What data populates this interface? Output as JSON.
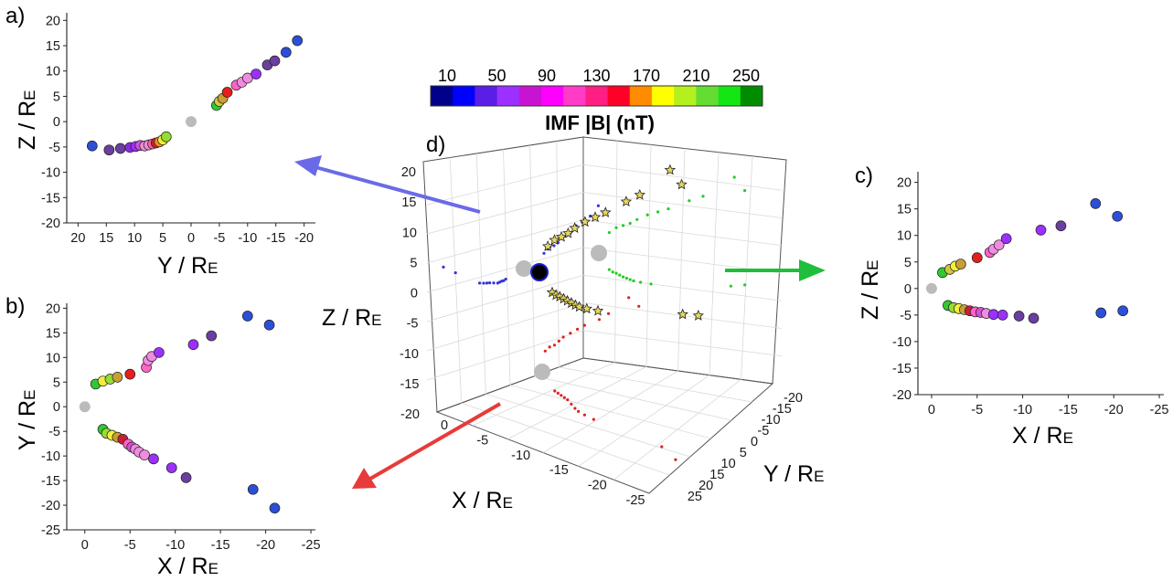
{
  "figure": {
    "title": ""
  },
  "colorbar": {
    "title": "IMF |B| (nT)",
    "tick_labels": [
      "10",
      "50",
      "90",
      "130",
      "170",
      "210",
      "250"
    ],
    "colors": [
      "#00008b",
      "#0000ff",
      "#5a1ee6",
      "#9b30ff",
      "#c814d2",
      "#ff00ff",
      "#ff3cc8",
      "#ff1e82",
      "#ff0028",
      "#ff8c00",
      "#ffff00",
      "#b4f01e",
      "#64dc32",
      "#14e614",
      "#008c00"
    ]
  },
  "marker_colors": {
    "earth": "#bbbbbb",
    "star_fill": "#e6d75a",
    "star_stroke": "#222222",
    "proj_zy": "#3232dc",
    "proj_zx": "#22cc22",
    "proj_yx": "#dd2222",
    "arrow_a": "#6a6ae8",
    "arrow_b": "#e83a3a",
    "arrow_c": "#1fbe3c"
  },
  "chart_data": [
    {
      "panel_label": "a)",
      "type": "scatter",
      "xlabel_main": "Y / R",
      "xlabel_sub": "E",
      "ylabel_main": "Z / R",
      "ylabel_sub": "E",
      "xlim": [
        20,
        -20
      ],
      "ylim": [
        -20,
        20
      ],
      "xticks": [
        "20",
        "15",
        "10",
        "5",
        "0",
        "-5",
        "-10",
        "-15",
        "-20"
      ],
      "yticks": [
        "20",
        "15",
        "10",
        "5",
        "0",
        "-5",
        "-10",
        "-15",
        "-20"
      ],
      "earth": [
        0,
        0
      ],
      "points": [
        {
          "x": 17.5,
          "y": -4.8,
          "c": "#2c4fd8"
        },
        {
          "x": 14.5,
          "y": -5.6,
          "c": "#6a3fa0"
        },
        {
          "x": 12.5,
          "y": -5.3,
          "c": "#6a3fa0"
        },
        {
          "x": 10.8,
          "y": -5.1,
          "c": "#8a2be2"
        },
        {
          "x": 9.8,
          "y": -4.9,
          "c": "#9b30ff"
        },
        {
          "x": 9.0,
          "y": -4.7,
          "c": "#d44fd4"
        },
        {
          "x": 8.2,
          "y": -4.8,
          "c": "#f08ce0"
        },
        {
          "x": 7.5,
          "y": -4.6,
          "c": "#f08ce0"
        },
        {
          "x": 6.8,
          "y": -4.4,
          "c": "#ff6496"
        },
        {
          "x": 6.2,
          "y": -4.2,
          "c": "#c81e3c"
        },
        {
          "x": 5.6,
          "y": -4.0,
          "c": "#ff8c1e"
        },
        {
          "x": 5.0,
          "y": -3.6,
          "c": "#f0f03c"
        },
        {
          "x": 4.4,
          "y": -3.0,
          "c": "#96dc32"
        },
        {
          "x": -4.5,
          "y": 3.2,
          "c": "#32c832"
        },
        {
          "x": -5.0,
          "y": 4.0,
          "c": "#d2c83c"
        },
        {
          "x": -5.6,
          "y": 4.6,
          "c": "#c8a032"
        },
        {
          "x": -6.4,
          "y": 5.8,
          "c": "#e61e1e"
        },
        {
          "x": -8.0,
          "y": 7.2,
          "c": "#ff64c8"
        },
        {
          "x": -9.0,
          "y": 7.8,
          "c": "#f08ce0"
        },
        {
          "x": -10.0,
          "y": 8.6,
          "c": "#f08ce0"
        },
        {
          "x": -11.5,
          "y": 9.4,
          "c": "#9b30ff"
        },
        {
          "x": -13.5,
          "y": 11.2,
          "c": "#6a3fa0"
        },
        {
          "x": -14.8,
          "y": 12.0,
          "c": "#6a3fa0"
        },
        {
          "x": -16.8,
          "y": 13.7,
          "c": "#2c4fd8"
        },
        {
          "x": -18.8,
          "y": 16.0,
          "c": "#2c4fd8"
        }
      ]
    },
    {
      "panel_label": "b)",
      "type": "scatter",
      "xlabel_main": "X / R",
      "xlabel_sub": "E",
      "ylabel_main": "Y / R",
      "ylabel_sub": "E",
      "xlim": [
        5,
        -25
      ],
      "ylim": [
        -25,
        20
      ],
      "xticks": [
        "0",
        "-5",
        "-10",
        "-15",
        "-20",
        "-25"
      ],
      "yticks": [
        "20",
        "15",
        "10",
        "5",
        "0",
        "-5",
        "-10",
        "-15",
        "-20",
        "-25"
      ],
      "earth": [
        0,
        0
      ],
      "points": [
        {
          "x": -1.2,
          "y": 4.6,
          "c": "#32c832"
        },
        {
          "x": -2.0,
          "y": 5.2,
          "c": "#f0f03c"
        },
        {
          "x": -2.8,
          "y": 5.6,
          "c": "#96dc32"
        },
        {
          "x": -3.6,
          "y": 6.0,
          "c": "#c8a032"
        },
        {
          "x": -5.0,
          "y": 6.6,
          "c": "#e61e1e"
        },
        {
          "x": -6.8,
          "y": 8.0,
          "c": "#ff64c8"
        },
        {
          "x": -7.0,
          "y": 9.4,
          "c": "#f08ce0"
        },
        {
          "x": -7.4,
          "y": 10.2,
          "c": "#f08ce0"
        },
        {
          "x": -8.2,
          "y": 11.0,
          "c": "#9b30ff"
        },
        {
          "x": -12.0,
          "y": 12.6,
          "c": "#9b30ff"
        },
        {
          "x": -14.0,
          "y": 14.4,
          "c": "#6a3fa0"
        },
        {
          "x": -18.0,
          "y": 18.4,
          "c": "#2c4fd8"
        },
        {
          "x": -20.4,
          "y": 16.6,
          "c": "#2c4fd8"
        },
        {
          "x": -2.0,
          "y": -4.6,
          "c": "#32c832"
        },
        {
          "x": -2.4,
          "y": -5.4,
          "c": "#96dc32"
        },
        {
          "x": -3.0,
          "y": -5.8,
          "c": "#f0f03c"
        },
        {
          "x": -3.6,
          "y": -6.2,
          "c": "#c8a032"
        },
        {
          "x": -4.2,
          "y": -6.6,
          "c": "#c81e3c"
        },
        {
          "x": -4.8,
          "y": -7.6,
          "c": "#ff64c8"
        },
        {
          "x": -5.2,
          "y": -8.2,
          "c": "#d44fd4"
        },
        {
          "x": -5.6,
          "y": -8.6,
          "c": "#f08ce0"
        },
        {
          "x": -6.0,
          "y": -9.2,
          "c": "#f08ce0"
        },
        {
          "x": -6.6,
          "y": -9.8,
          "c": "#f08ce0"
        },
        {
          "x": -7.6,
          "y": -10.6,
          "c": "#9b30ff"
        },
        {
          "x": -9.6,
          "y": -12.4,
          "c": "#9b30ff"
        },
        {
          "x": -11.2,
          "y": -14.4,
          "c": "#6a3fa0"
        },
        {
          "x": -18.6,
          "y": -16.8,
          "c": "#2c4fd8"
        },
        {
          "x": -21.0,
          "y": -20.6,
          "c": "#2c4fd8"
        }
      ]
    },
    {
      "panel_label": "c)",
      "type": "scatter",
      "xlabel_main": "X / R",
      "xlabel_sub": "E",
      "ylabel_main": "Z / R",
      "ylabel_sub": "E",
      "xlim": [
        2,
        -25
      ],
      "ylim": [
        -20,
        20
      ],
      "xticks": [
        "0",
        "-5",
        "-10",
        "-15",
        "-20",
        "-25"
      ],
      "yticks": [
        "20",
        "15",
        "10",
        "5",
        "0",
        "-5",
        "-10",
        "-15",
        "-20"
      ],
      "earth": [
        0,
        0
      ],
      "points": [
        {
          "x": -1.2,
          "y": 3.0,
          "c": "#32c832"
        },
        {
          "x": -2.0,
          "y": 3.6,
          "c": "#d2c83c"
        },
        {
          "x": -2.6,
          "y": 4.2,
          "c": "#f0f03c"
        },
        {
          "x": -3.2,
          "y": 4.6,
          "c": "#c8a032"
        },
        {
          "x": -5.0,
          "y": 5.8,
          "c": "#e61e1e"
        },
        {
          "x": -6.4,
          "y": 6.8,
          "c": "#ff64c8"
        },
        {
          "x": -6.8,
          "y": 7.4,
          "c": "#f08ce0"
        },
        {
          "x": -7.4,
          "y": 8.2,
          "c": "#f08ce0"
        },
        {
          "x": -8.2,
          "y": 9.4,
          "c": "#9b30ff"
        },
        {
          "x": -12.0,
          "y": 11.0,
          "c": "#9b30ff"
        },
        {
          "x": -14.2,
          "y": 11.8,
          "c": "#6a3fa0"
        },
        {
          "x": -18.0,
          "y": 16.0,
          "c": "#2c4fd8"
        },
        {
          "x": -20.4,
          "y": 13.6,
          "c": "#2c4fd8"
        },
        {
          "x": -1.8,
          "y": -3.2,
          "c": "#32c832"
        },
        {
          "x": -2.4,
          "y": -3.6,
          "c": "#96dc32"
        },
        {
          "x": -3.0,
          "y": -3.8,
          "c": "#f0f03c"
        },
        {
          "x": -3.6,
          "y": -4.0,
          "c": "#c8a032"
        },
        {
          "x": -4.2,
          "y": -4.2,
          "c": "#c81e3c"
        },
        {
          "x": -4.8,
          "y": -4.4,
          "c": "#ff64c8"
        },
        {
          "x": -5.4,
          "y": -4.5,
          "c": "#d44fd4"
        },
        {
          "x": -6.0,
          "y": -4.7,
          "c": "#f08ce0"
        },
        {
          "x": -6.8,
          "y": -4.9,
          "c": "#9b30ff"
        },
        {
          "x": -7.8,
          "y": -5.0,
          "c": "#9b30ff"
        },
        {
          "x": -9.6,
          "y": -5.2,
          "c": "#6a3fa0"
        },
        {
          "x": -11.2,
          "y": -5.6,
          "c": "#6a3fa0"
        },
        {
          "x": -18.6,
          "y": -4.6,
          "c": "#2c4fd8"
        },
        {
          "x": -21.0,
          "y": -4.2,
          "c": "#2c4fd8"
        }
      ]
    },
    {
      "panel_label": "d)",
      "type": "scatter",
      "xlabel_main": "X / R",
      "xlabel_sub": "E",
      "ylabel_main": "Y / R",
      "ylabel_sub": "E",
      "zlabel_main": "Z / R",
      "zlabel_sub": "E",
      "xticks": [
        "0",
        "-5",
        "-10",
        "-15",
        "-20",
        "-25"
      ],
      "yticks": [
        "-20",
        "-15",
        "-10",
        "-5",
        "0",
        "5",
        "10",
        "15",
        "20",
        "25"
      ],
      "zticks": [
        "20",
        "15",
        "10",
        "5",
        "0",
        "-5",
        "-10",
        "-15",
        "-20"
      ],
      "points_3d": [
        {
          "x": -1.5,
          "y": -5.0,
          "z": 4.0
        },
        {
          "x": -2.5,
          "y": -6.0,
          "z": 5.0
        },
        {
          "x": -3.5,
          "y": -6.5,
          "z": 5.5
        },
        {
          "x": -4.5,
          "y": -7.5,
          "z": 6.0
        },
        {
          "x": -5.5,
          "y": -8.5,
          "z": 6.8
        },
        {
          "x": -7.0,
          "y": -9.5,
          "z": 7.8
        },
        {
          "x": -8.5,
          "y": -10.5,
          "z": 8.5
        },
        {
          "x": -10.0,
          "y": -11.5,
          "z": 9.2
        },
        {
          "x": -13.0,
          "y": -13.0,
          "z": 11.0
        },
        {
          "x": -15.0,
          "y": -14.5,
          "z": 12.0
        },
        {
          "x": -19.5,
          "y": -18.5,
          "z": 16.0
        },
        {
          "x": -21.0,
          "y": -16.5,
          "z": 13.6
        },
        {
          "x": -1.5,
          "y": 4.5,
          "z": -3.0
        },
        {
          "x": -2.0,
          "y": 5.0,
          "z": -3.4
        },
        {
          "x": -2.5,
          "y": 5.5,
          "z": -3.6
        },
        {
          "x": -3.0,
          "y": 6.0,
          "z": -3.9
        },
        {
          "x": -3.5,
          "y": 6.5,
          "z": -4.2
        },
        {
          "x": -4.0,
          "y": 7.5,
          "z": -4.4
        },
        {
          "x": -4.5,
          "y": 8.5,
          "z": -4.6
        },
        {
          "x": -5.0,
          "y": 9.2,
          "z": -4.8
        },
        {
          "x": -6.0,
          "y": 10.0,
          "z": -5.0
        },
        {
          "x": -7.5,
          "y": 11.0,
          "z": -5.2
        },
        {
          "x": -19.0,
          "y": 17.0,
          "z": -4.6
        },
        {
          "x": -21.0,
          "y": 20.0,
          "z": -4.2
        }
      ]
    }
  ]
}
